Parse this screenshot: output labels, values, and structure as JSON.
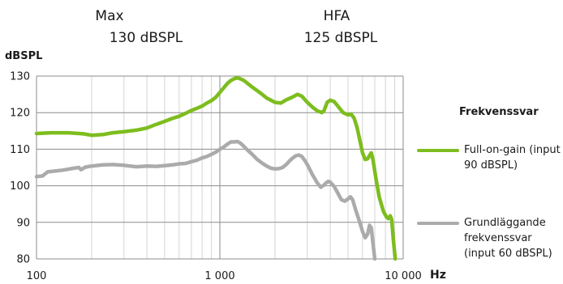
{
  "header": {
    "max_label": "Max",
    "max_value": "130 dBSPL",
    "hfa_label": "HFA",
    "hfa_value": "125 dBSPL"
  },
  "chart_data": {
    "type": "line",
    "xlabel": "Hz",
    "ylabel": "dBSPL",
    "xscale": "log",
    "xlim": [
      100,
      10000
    ],
    "ylim": [
      80,
      130
    ],
    "grid": true,
    "xticks": [
      {
        "value": 100,
        "label": "100"
      },
      {
        "value": 1000,
        "label": "1 000"
      },
      {
        "value": 10000,
        "label": "10 000"
      }
    ],
    "yticks": [
      {
        "value": 80,
        "label": "80"
      },
      {
        "value": 90,
        "label": "90"
      },
      {
        "value": 100,
        "label": "100"
      },
      {
        "value": 110,
        "label": "110"
      },
      {
        "value": 120,
        "label": "120"
      },
      {
        "value": 130,
        "label": "130"
      }
    ],
    "legend_title": "Frekvenssvar",
    "legend_position": "right",
    "series": [
      {
        "name": "Full-on-gain (input 90 dBSPL)",
        "color": "#7dbd1e",
        "points": [
          [
            100,
            114.3
          ],
          [
            120,
            114.5
          ],
          [
            150,
            114.5
          ],
          [
            180,
            114.2
          ],
          [
            200,
            113.8
          ],
          [
            230,
            114
          ],
          [
            260,
            114.5
          ],
          [
            300,
            114.8
          ],
          [
            350,
            115.2
          ],
          [
            400,
            115.8
          ],
          [
            450,
            116.8
          ],
          [
            500,
            117.6
          ],
          [
            550,
            118.4
          ],
          [
            600,
            119
          ],
          [
            650,
            119.8
          ],
          [
            700,
            120.6
          ],
          [
            750,
            121.2
          ],
          [
            800,
            121.8
          ],
          [
            850,
            122.6
          ],
          [
            900,
            123.3
          ],
          [
            950,
            124.2
          ],
          [
            1000,
            125.5
          ],
          [
            1050,
            126.8
          ],
          [
            1100,
            128
          ],
          [
            1150,
            128.8
          ],
          [
            1200,
            129.3
          ],
          [
            1250,
            129.5
          ],
          [
            1300,
            129.2
          ],
          [
            1350,
            128.8
          ],
          [
            1400,
            128.2
          ],
          [
            1500,
            127
          ],
          [
            1600,
            126
          ],
          [
            1700,
            125
          ],
          [
            1800,
            124
          ],
          [
            2000,
            122.8
          ],
          [
            2150,
            122.6
          ],
          [
            2300,
            123.5
          ],
          [
            2500,
            124.3
          ],
          [
            2650,
            125
          ],
          [
            2800,
            124.5
          ],
          [
            3000,
            122.8
          ],
          [
            3200,
            121.5
          ],
          [
            3400,
            120.5
          ],
          [
            3600,
            120
          ],
          [
            3700,
            120.5
          ],
          [
            3850,
            122.8
          ],
          [
            4000,
            123.4
          ],
          [
            4200,
            123
          ],
          [
            4400,
            121.8
          ],
          [
            4700,
            120
          ],
          [
            5000,
            119.4
          ],
          [
            5200,
            119.6
          ],
          [
            5400,
            118.5
          ],
          [
            5600,
            116
          ],
          [
            5800,
            112.5
          ],
          [
            6000,
            109
          ],
          [
            6200,
            107.2
          ],
          [
            6400,
            107.4
          ],
          [
            6600,
            108.5
          ],
          [
            6700,
            109
          ],
          [
            6850,
            107
          ],
          [
            7100,
            102
          ],
          [
            7400,
            97
          ],
          [
            7800,
            93
          ],
          [
            8100,
            91.5
          ],
          [
            8300,
            91
          ],
          [
            8500,
            91.8
          ],
          [
            8650,
            90.8
          ],
          [
            8850,
            85
          ],
          [
            9050,
            80
          ]
        ]
      },
      {
        "name": "Grundläggande frekvenssvar (input 60 dBSPL)",
        "color": "#ababab",
        "points": [
          [
            100,
            102.5
          ],
          [
            108,
            102.7
          ],
          [
            115,
            103.8
          ],
          [
            125,
            104
          ],
          [
            140,
            104.3
          ],
          [
            160,
            104.8
          ],
          [
            170,
            105
          ],
          [
            175,
            104.4
          ],
          [
            185,
            105.1
          ],
          [
            200,
            105.4
          ],
          [
            230,
            105.7
          ],
          [
            260,
            105.8
          ],
          [
            300,
            105.6
          ],
          [
            350,
            105.2
          ],
          [
            400,
            105.4
          ],
          [
            450,
            105.3
          ],
          [
            500,
            105.5
          ],
          [
            550,
            105.7
          ],
          [
            600,
            106
          ],
          [
            650,
            106.1
          ],
          [
            700,
            106.6
          ],
          [
            750,
            107
          ],
          [
            800,
            107.6
          ],
          [
            850,
            108
          ],
          [
            900,
            108.6
          ],
          [
            950,
            109.2
          ],
          [
            1000,
            110
          ],
          [
            1050,
            110.6
          ],
          [
            1100,
            111.4
          ],
          [
            1150,
            112
          ],
          [
            1200,
            112
          ],
          [
            1250,
            112.1
          ],
          [
            1300,
            111.6
          ],
          [
            1350,
            110.8
          ],
          [
            1400,
            110
          ],
          [
            1500,
            108.6
          ],
          [
            1600,
            107.2
          ],
          [
            1700,
            106.2
          ],
          [
            1800,
            105.4
          ],
          [
            1900,
            104.8
          ],
          [
            2000,
            104.6
          ],
          [
            2100,
            104.7
          ],
          [
            2200,
            105
          ],
          [
            2300,
            105.8
          ],
          [
            2400,
            106.8
          ],
          [
            2500,
            107.6
          ],
          [
            2600,
            108.2
          ],
          [
            2700,
            108.4
          ],
          [
            2800,
            108
          ],
          [
            2900,
            107
          ],
          [
            3000,
            105.8
          ],
          [
            3200,
            103
          ],
          [
            3400,
            100.8
          ],
          [
            3550,
            99.6
          ],
          [
            3700,
            100.2
          ],
          [
            3800,
            100.8
          ],
          [
            3900,
            101.2
          ],
          [
            4000,
            101
          ],
          [
            4200,
            99.8
          ],
          [
            4400,
            98
          ],
          [
            4600,
            96.2
          ],
          [
            4800,
            95.8
          ],
          [
            5000,
            96.4
          ],
          [
            5150,
            97
          ],
          [
            5300,
            96.2
          ],
          [
            5500,
            93.5
          ],
          [
            5800,
            90
          ],
          [
            6000,
            87.5
          ],
          [
            6200,
            85.8
          ],
          [
            6400,
            86.8
          ],
          [
            6550,
            89.2
          ],
          [
            6700,
            88.5
          ],
          [
            6850,
            84
          ],
          [
            7000,
            80
          ]
        ]
      }
    ]
  }
}
